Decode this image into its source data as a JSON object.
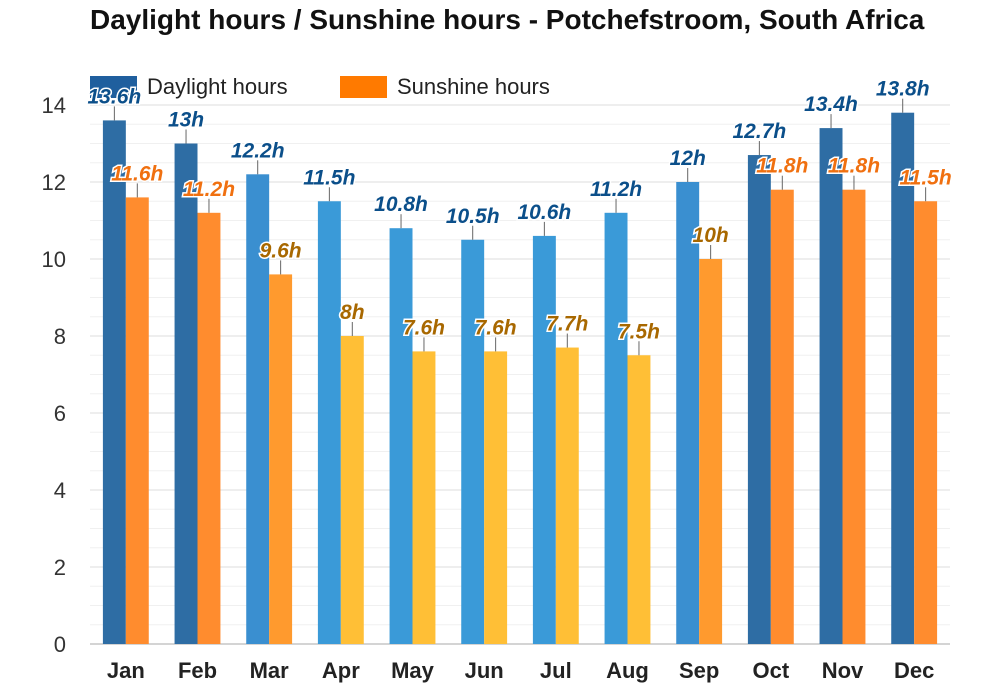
{
  "chart_data": {
    "type": "bar",
    "title": "Daylight hours / Sunshine hours - Potchefstroom, South Africa",
    "categories": [
      "Jan",
      "Feb",
      "Mar",
      "Apr",
      "May",
      "Jun",
      "Jul",
      "Aug",
      "Sep",
      "Oct",
      "Nov",
      "Dec"
    ],
    "series": [
      {
        "name": "Daylight hours",
        "values": [
          13.6,
          13,
          12.2,
          11.5,
          10.8,
          10.5,
          10.6,
          11.2,
          12,
          12.7,
          13.4,
          13.8
        ],
        "labels": [
          "13.6h",
          "13h",
          "12.2h",
          "11.5h",
          "10.8h",
          "10.5h",
          "10.6h",
          "11.2h",
          "12h",
          "12.7h",
          "13.4h",
          "13.8h"
        ],
        "colors": [
          "#2e6da4",
          "#2e6da4",
          "#3a8fd0",
          "#3a9ad8",
          "#3a9ad8",
          "#3a9ad8",
          "#3a9ad8",
          "#3a9ad8",
          "#3a8fd0",
          "#2e6da4",
          "#2e6da4",
          "#2e6da4"
        ],
        "label_color": "#0b4f8a"
      },
      {
        "name": "Sunshine hours",
        "values": [
          11.6,
          11.2,
          9.6,
          8,
          7.6,
          7.6,
          7.7,
          7.5,
          10,
          11.8,
          11.8,
          11.5
        ],
        "labels": [
          "11.6h",
          "11.2h",
          "9.6h",
          "8h",
          "7.6h",
          "7.6h",
          "7.7h",
          "7.5h",
          "10h",
          "11.8h",
          "11.8h",
          "11.5h"
        ],
        "colors": [
          "#ff8c2e",
          "#ff8c2e",
          "#ff9a2e",
          "#ffbf36",
          "#ffbf36",
          "#ffbf36",
          "#ffbf36",
          "#ffbf36",
          "#ff9a2e",
          "#ff8c2e",
          "#ff8c2e",
          "#ff8c2e"
        ],
        "label_colors": [
          "#f07010",
          "#f07010",
          "#a86800",
          "#a86800",
          "#a86800",
          "#a86800",
          "#a86800",
          "#a86800",
          "#a86800",
          "#f07010",
          "#f07010",
          "#f07010"
        ]
      }
    ],
    "ylim": [
      0,
      14
    ],
    "yticks": [
      "0",
      "2",
      "4",
      "6",
      "8",
      "10",
      "12",
      "14"
    ],
    "grid": true,
    "legend": "top-left",
    "legend_colors": [
      "#1f5f9e",
      "#ff7a00"
    ]
  }
}
